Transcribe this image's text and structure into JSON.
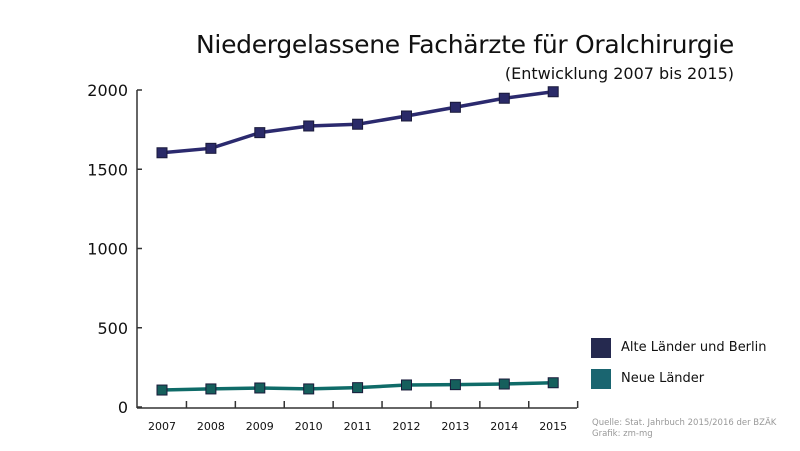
{
  "chart_data": {
    "type": "line",
    "title": "Niedergelassene Fachärzte für Oralchirurgie",
    "subtitle": "(Entwicklung 2007 bis 2015)",
    "categories": [
      "2007",
      "2008",
      "2009",
      "2010",
      "2011",
      "2012",
      "2013",
      "2014",
      "2015"
    ],
    "yticks": [
      "0",
      "500",
      "1000",
      "1500",
      "2000"
    ],
    "ylim": [
      0,
      2000
    ],
    "series": [
      {
        "name": "Alte Länder und Berlin",
        "color": "#2b2a6e",
        "values": [
          1604,
          1632,
          1731,
          1773,
          1784,
          1836,
          1891,
          1948,
          1989
        ]
      },
      {
        "name": "Neue Länder",
        "color": "#0f6b68",
        "values": [
          107,
          114,
          120,
          114,
          122,
          139,
          141,
          145,
          153
        ]
      }
    ],
    "legend_position": "right",
    "source": [
      "Quelle: Stat. Jahrbuch 2015/2016 der BZÄK",
      "Grafik: zm-mg"
    ]
  }
}
